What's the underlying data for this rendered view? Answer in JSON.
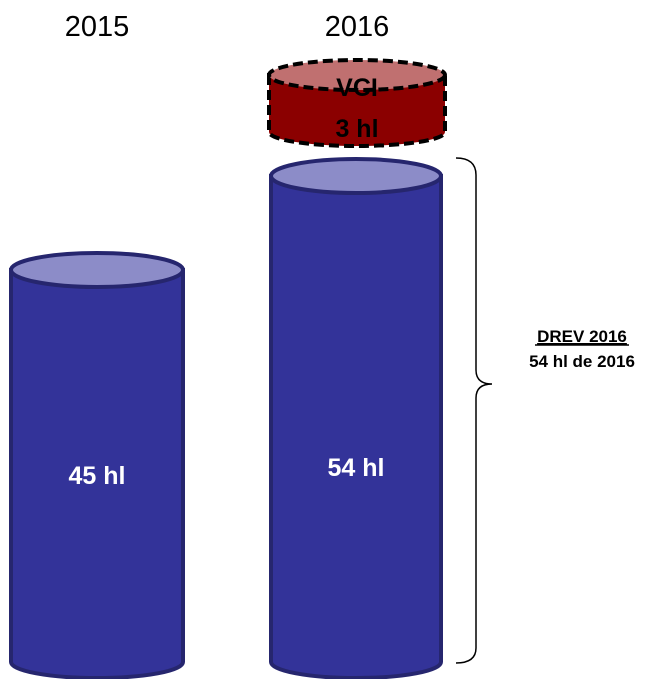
{
  "columns": [
    {
      "year": "2015",
      "label": "45 hl"
    },
    {
      "year": "2016",
      "label": "54 hl",
      "extra": {
        "name": "VCI",
        "label": "3 hl"
      }
    }
  ],
  "brace": {
    "title": "DREV 2016",
    "subtitle": "54 hl de 2016"
  }
}
